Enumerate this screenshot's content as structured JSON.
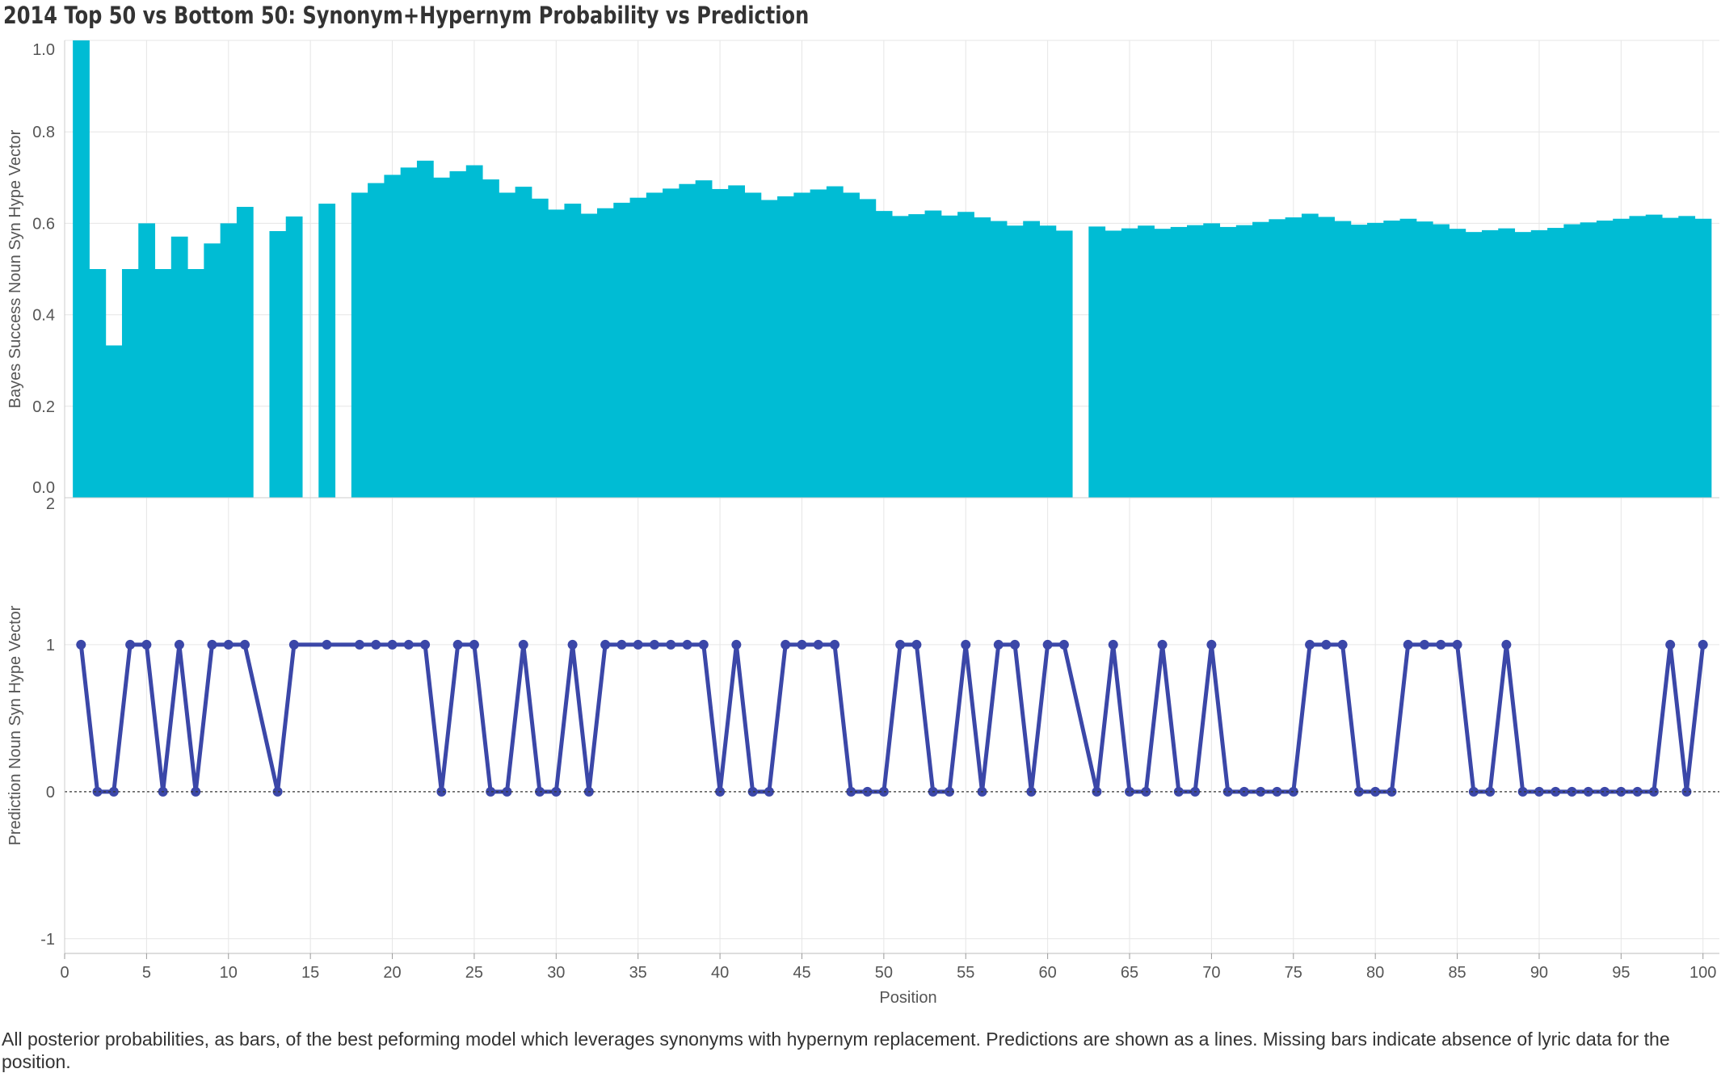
{
  "chart_data": [
    {
      "type": "bar",
      "title": "2014 Top 50 vs Bottom 50: Synonym+Hypernym Probability vs Prediction",
      "ylabel": "Bayes Success Noun Syn Hype Vector",
      "xlabel": "Position",
      "ylim": [
        0,
        1.0
      ],
      "y_ticks": [
        "0.0",
        "0.2",
        "0.4",
        "0.6",
        "0.8",
        "1.0"
      ],
      "y_tick_values": [
        0,
        0.2,
        0.4,
        0.6,
        0.8,
        1.0
      ],
      "color": "#00BCD4",
      "x": [
        1,
        2,
        3,
        4,
        5,
        6,
        7,
        8,
        9,
        10,
        11,
        12,
        13,
        14,
        15,
        16,
        17,
        18,
        19,
        20,
        21,
        22,
        23,
        24,
        25,
        26,
        27,
        28,
        29,
        30,
        31,
        32,
        33,
        34,
        35,
        36,
        37,
        38,
        39,
        40,
        41,
        42,
        43,
        44,
        45,
        46,
        47,
        48,
        49,
        50,
        51,
        52,
        53,
        54,
        55,
        56,
        57,
        58,
        59,
        60,
        61,
        62,
        63,
        64,
        65,
        66,
        67,
        68,
        69,
        70,
        71,
        72,
        73,
        74,
        75,
        76,
        77,
        78,
        79,
        80,
        81,
        82,
        83,
        84,
        85,
        86,
        87,
        88,
        89,
        90,
        91,
        92,
        93,
        94,
        95,
        96,
        97,
        98,
        99,
        100
      ],
      "values": [
        1.0,
        0.5,
        0.333,
        0.5,
        0.6,
        0.5,
        0.571,
        0.5,
        0.556,
        0.6,
        0.636,
        null,
        0.583,
        0.615,
        null,
        0.643,
        null,
        0.667,
        0.688,
        0.706,
        0.722,
        0.737,
        0.7,
        0.714,
        0.727,
        0.696,
        0.667,
        0.68,
        0.654,
        0.63,
        0.643,
        0.621,
        0.633,
        0.645,
        0.656,
        0.667,
        0.676,
        0.686,
        0.694,
        0.675,
        0.683,
        0.667,
        0.651,
        0.659,
        0.667,
        0.674,
        0.681,
        0.667,
        0.653,
        0.627,
        0.616,
        0.62,
        0.628,
        0.617,
        0.625,
        0.613,
        0.605,
        0.595,
        0.605,
        0.595,
        0.584,
        null,
        0.593,
        0.584,
        0.589,
        0.595,
        0.588,
        0.592,
        0.596,
        0.6,
        0.592,
        0.596,
        0.603,
        0.609,
        0.613,
        0.621,
        0.614,
        0.605,
        0.597,
        0.601,
        0.606,
        0.61,
        0.604,
        0.598,
        0.588,
        0.581,
        0.585,
        0.589,
        0.581,
        0.585,
        0.59,
        0.598,
        0.602,
        0.606,
        0.61,
        0.616,
        0.619,
        0.612,
        0.616,
        0.61
      ]
    },
    {
      "type": "line",
      "ylabel": "Prediction Noun Syn Hype Vector",
      "xlabel": "Position",
      "ylim": [
        -1.1,
        2
      ],
      "y_ticks": [
        "-1",
        "0",
        "1",
        "2"
      ],
      "y_tick_values": [
        -1,
        0,
        1,
        2
      ],
      "reference_line": 0,
      "color": "#3B47A8",
      "x": [
        1,
        2,
        3,
        4,
        5,
        6,
        7,
        8,
        9,
        10,
        11,
        13,
        14,
        16,
        18,
        19,
        20,
        21,
        22,
        23,
        24,
        25,
        26,
        27,
        28,
        29,
        30,
        31,
        32,
        33,
        34,
        35,
        36,
        37,
        38,
        39,
        40,
        41,
        42,
        43,
        44,
        45,
        46,
        47,
        48,
        49,
        50,
        51,
        52,
        53,
        54,
        55,
        56,
        57,
        58,
        59,
        60,
        61,
        63,
        64,
        65,
        66,
        67,
        68,
        69,
        70,
        71,
        72,
        73,
        74,
        75,
        76,
        77,
        78,
        79,
        80,
        81,
        82,
        83,
        84,
        85,
        86,
        87,
        88,
        89,
        90,
        91,
        92,
        93,
        94,
        95,
        96,
        97,
        98,
        99,
        100
      ],
      "values": [
        1,
        0,
        0,
        1,
        1,
        0,
        1,
        0,
        1,
        1,
        1,
        0,
        1,
        1,
        1,
        1,
        1,
        1,
        1,
        0,
        1,
        1,
        0,
        0,
        1,
        0,
        0,
        1,
        0,
        1,
        1,
        1,
        1,
        1,
        1,
        1,
        0,
        1,
        0,
        0,
        1,
        1,
        1,
        1,
        0,
        0,
        0,
        1,
        1,
        0,
        0,
        1,
        0,
        1,
        1,
        0,
        1,
        1,
        0,
        1,
        0,
        0,
        1,
        0,
        0,
        1,
        0,
        0,
        0,
        0,
        0,
        1,
        1,
        1,
        0,
        0,
        0,
        1,
        1,
        1,
        1,
        0,
        0,
        1,
        0,
        0,
        0,
        0,
        0,
        0,
        0,
        0,
        0,
        1,
        0,
        1
      ]
    }
  ],
  "x_axis": {
    "label": "Position",
    "ticks": [
      "0",
      "5",
      "10",
      "15",
      "20",
      "25",
      "30",
      "35",
      "40",
      "45",
      "50",
      "55",
      "60",
      "65",
      "70",
      "75",
      "80",
      "85",
      "90",
      "95",
      "100"
    ],
    "tick_values": [
      0,
      5,
      10,
      15,
      20,
      25,
      30,
      35,
      40,
      45,
      50,
      55,
      60,
      65,
      70,
      75,
      80,
      85,
      90,
      95,
      100
    ],
    "range": [
      0,
      101
    ]
  },
  "caption": "All posterior probabilities, as bars, of the best peforming model which leverages synonyms with hypernym replacement. Predictions are shown as a lines. Missing bars indicate absence of lyric data for the position."
}
